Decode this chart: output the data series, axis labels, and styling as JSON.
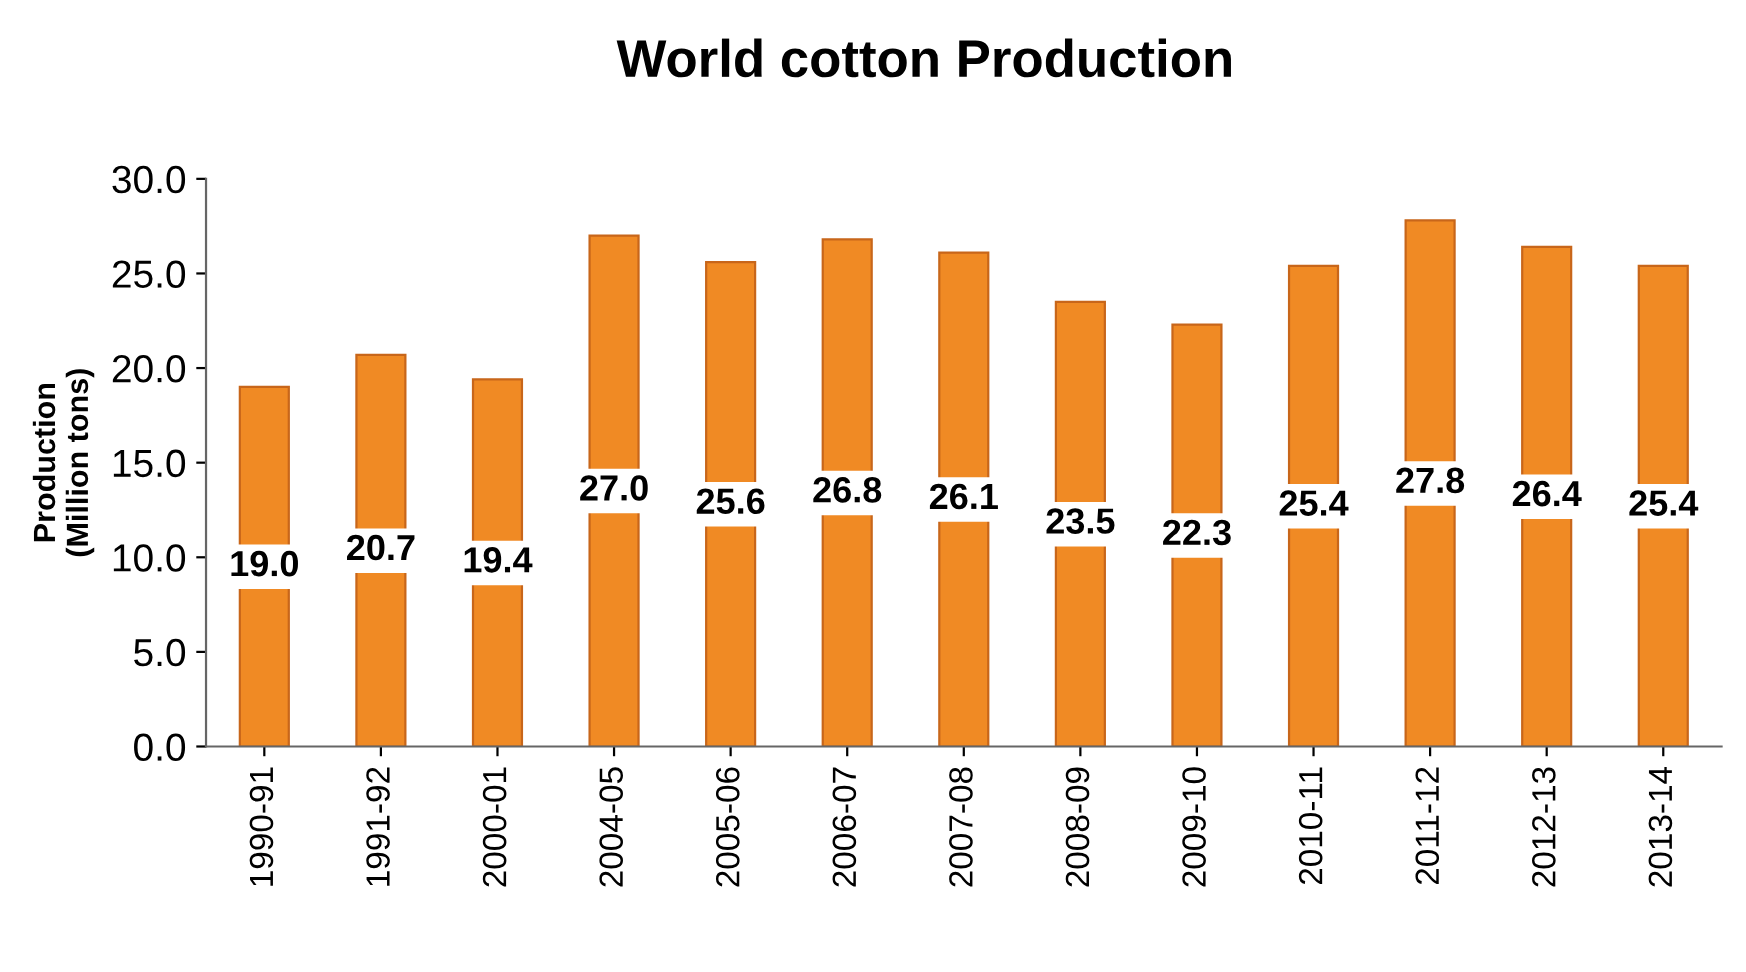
{
  "chart_data": {
    "type": "bar",
    "title": "World cotton Production",
    "ylabel": "Production\n(Million tons)",
    "categories": [
      "1990-91",
      "1991-92",
      "2000-01",
      "2004-05",
      "2005-06",
      "2006-07",
      "2007-08",
      "2008-09",
      "2009-10",
      "2010-11",
      "2011-12",
      "2012-13",
      "2013-14"
    ],
    "values": [
      19.0,
      20.7,
      19.4,
      27.0,
      25.6,
      26.8,
      26.1,
      23.5,
      22.3,
      25.4,
      27.8,
      26.4,
      25.4
    ],
    "color": "#f08a24",
    "ylim": [
      0,
      30
    ],
    "yticks": [
      {
        "value": 0,
        "label": "0.0"
      },
      {
        "value": 5,
        "label": "5.0"
      },
      {
        "value": 10,
        "label": "10.0"
      },
      {
        "value": 15,
        "label": "15.0"
      },
      {
        "value": 20,
        "label": "20.0"
      },
      {
        "value": 25,
        "label": "25.0"
      },
      {
        "value": 30,
        "label": "30.0"
      }
    ],
    "value_labels": [
      "19.0",
      "20.7",
      "19.4",
      "27.0",
      "25.6",
      "26.8",
      "26.1",
      "23.5",
      "22.3",
      "25.4",
      "27.8",
      "26.4",
      "25.4"
    ],
    "grid": false,
    "legend": false
  }
}
